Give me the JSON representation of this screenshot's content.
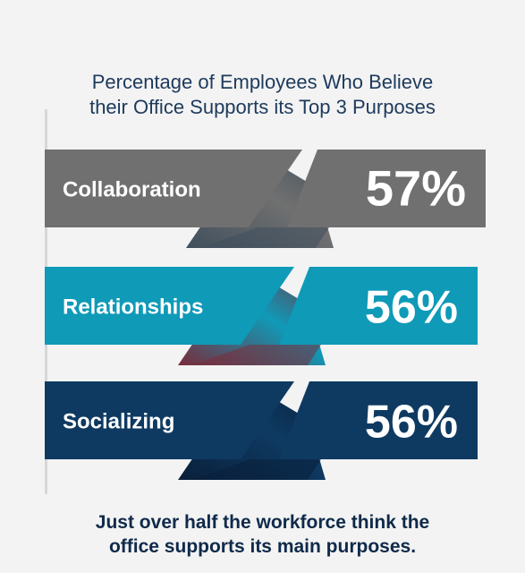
{
  "chart_data": {
    "type": "bar",
    "title_lines": [
      "Percentage of Employees Who Believe",
      "their Office Supports its Top 3 Purposes"
    ],
    "categories": [
      "Collaboration",
      "Relationships",
      "Socializing"
    ],
    "values": [
      57,
      56,
      56
    ],
    "value_labels": [
      "57%",
      "56%",
      "56%"
    ],
    "colors": [
      "#707070",
      "#0f9ab8",
      "#0e3a62"
    ],
    "fold_colors": [
      "#3f4f5c",
      "#7a2b3a",
      "#0a1f3a"
    ]
  },
  "footer_lines": [
    "Just over half the workforce think the",
    "office supports its main purposes."
  ]
}
